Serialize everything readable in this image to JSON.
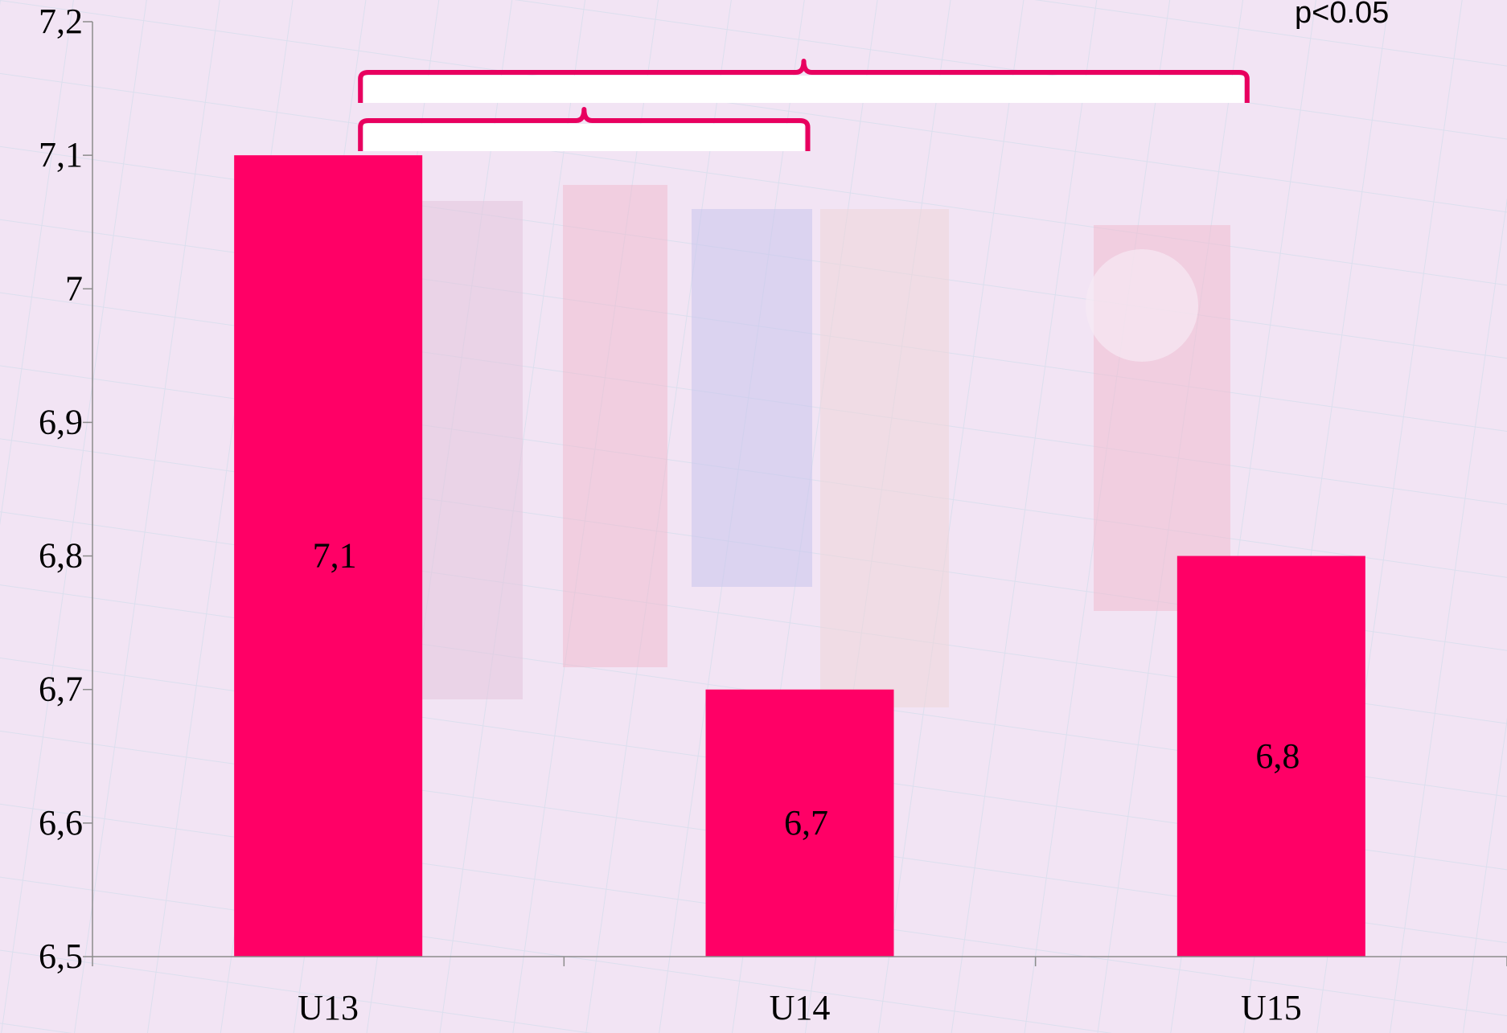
{
  "chart_data": {
    "type": "bar",
    "categories": [
      "U13",
      "U14",
      "U15"
    ],
    "values": [
      7.1,
      6.7,
      6.8
    ],
    "data_labels": [
      "7,1",
      "6,7",
      "6,8"
    ],
    "ylim": [
      6.5,
      7.2
    ],
    "yticks": [
      6.5,
      6.6,
      6.7,
      6.8,
      6.9,
      7.0,
      7.1,
      7.2
    ],
    "ytick_labels": [
      "6,5",
      "6,6",
      "6,7",
      "6,8",
      "6,9",
      "7",
      "7,1",
      "7,2"
    ],
    "bar_color": "#ff0066",
    "bracket_color": "#e8005f",
    "grid": false,
    "annotations": {
      "significance_text": "p<0.05",
      "brackets": [
        {
          "from": "U13",
          "to": "U14"
        },
        {
          "from": "U13",
          "to": "U15"
        }
      ]
    }
  },
  "background": {
    "description_colors": [
      "#f2e4f4",
      "#e9d6ee",
      "#d8c6e6"
    ]
  }
}
